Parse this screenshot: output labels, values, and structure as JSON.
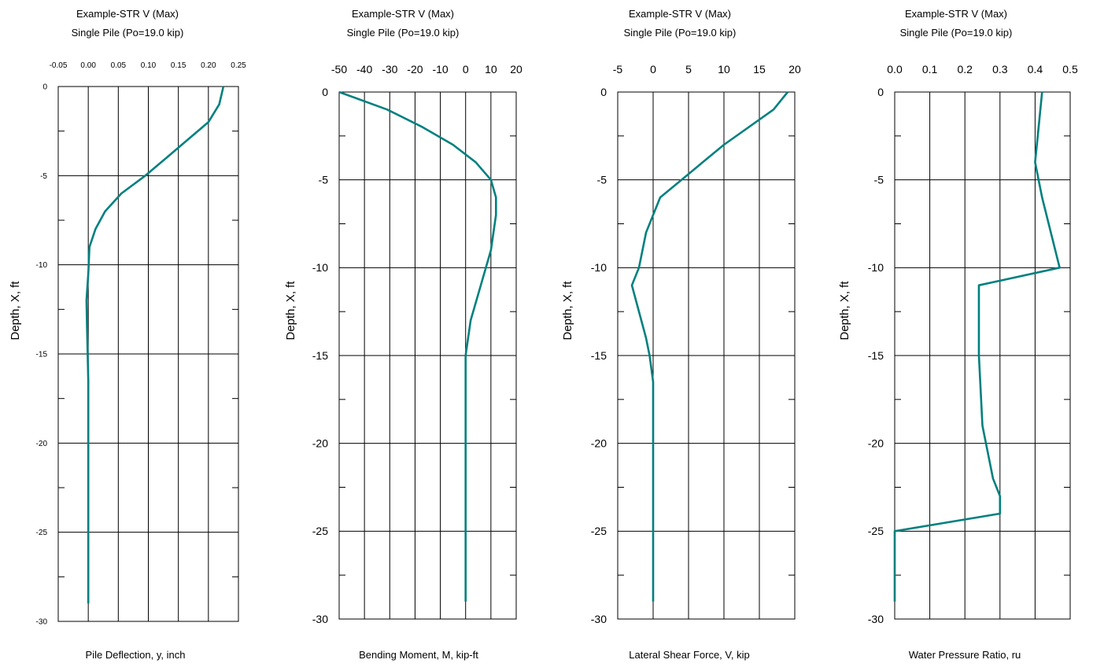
{
  "chart_data": [
    {
      "type": "line",
      "title": "Example-STR V (Max)",
      "subtitle": "Single Pile (Po=19.0 kip)",
      "xlabel": "Pile Deflection, y, inch",
      "ylabel": "Depth,  X, ft",
      "xlim": [
        -0.05,
        0.25
      ],
      "ylim": [
        -30,
        0
      ],
      "xticks": [
        "-0.05",
        "0.00",
        "0.05",
        "0.10",
        "0.15",
        "0.20",
        "0.25"
      ],
      "yticks": [
        "0",
        "-5",
        "-10",
        "-15",
        "-20",
        "-25",
        "-30"
      ],
      "grid": true,
      "color": "#00807f",
      "x": [
        0.225,
        0.218,
        0.2,
        0.165,
        0.13,
        0.095,
        0.055,
        0.028,
        0.012,
        0.002,
        0.0,
        -0.003,
        -0.002,
        0.0,
        0.0,
        0.0
      ],
      "y": [
        0,
        -1,
        -2,
        -3,
        -4,
        -5,
        -6,
        -7,
        -8,
        -9,
        -10.5,
        -12,
        -13.5,
        -16.5,
        -20,
        -29
      ]
    },
    {
      "type": "line",
      "title": "Example-STR V (Max)",
      "subtitle": "Single Pile (Po=19.0 kip)",
      "xlabel": "Bending Moment, M, kip-ft",
      "ylabel": "Depth,  X, ft",
      "xlim": [
        -50,
        20
      ],
      "ylim": [
        -30,
        0
      ],
      "xticks": [
        "-50",
        "-40",
        "-30",
        "-20",
        "-10",
        "0",
        "10",
        "20"
      ],
      "yticks": [
        "0",
        "-5",
        "-10",
        "-15",
        "-20",
        "-25",
        "-30"
      ],
      "grid": true,
      "color": "#00807f",
      "x": [
        -50,
        -31,
        -17,
        -5,
        4,
        10,
        12,
        12,
        10,
        6,
        2,
        0,
        0,
        0,
        0
      ],
      "y": [
        0,
        -1,
        -2,
        -3,
        -4,
        -5,
        -6,
        -7,
        -9,
        -11,
        -13,
        -15,
        -17,
        -19.5,
        -29
      ]
    },
    {
      "type": "line",
      "title": "Example-STR V (Max)",
      "subtitle": "Single Pile (Po=19.0 kip)",
      "xlabel": "Lateral Shear Force, V, kip",
      "ylabel": "Depth,  X, ft",
      "xlim": [
        -5,
        20
      ],
      "ylim": [
        -30,
        0
      ],
      "xticks": [
        "-5",
        "0",
        "5",
        "10",
        "15",
        "20"
      ],
      "yticks": [
        "0",
        "-5",
        "-10",
        "-15",
        "-20",
        "-25",
        "-30"
      ],
      "grid": true,
      "color": "#00807f",
      "x": [
        19,
        17,
        10,
        7,
        4,
        1,
        0,
        -1,
        -2,
        -3,
        -1,
        -0.5,
        0,
        0,
        0
      ],
      "y": [
        0,
        -1,
        -3,
        -4,
        -5,
        -6,
        -7,
        -8,
        -10,
        -11,
        -14,
        -15,
        -16.5,
        -22,
        -29
      ]
    },
    {
      "type": "line",
      "title": "Example-STR V (Max)",
      "subtitle": "Single Pile (Po=19.0 kip)",
      "xlabel": "Water Pressure Ratio, ru",
      "ylabel": "Depth,  X, ft",
      "xlim": [
        0.0,
        0.5
      ],
      "ylim": [
        -30,
        0
      ],
      "xticks": [
        "0.0",
        "0.1",
        "0.2",
        "0.3",
        "0.4",
        "0.5"
      ],
      "yticks": [
        "0",
        "-5",
        "-10",
        "-15",
        "-20",
        "-25",
        "-30"
      ],
      "grid": true,
      "color": "#00807f",
      "x": [
        0.42,
        0.41,
        0.4,
        0.42,
        0.47,
        0.24,
        0.24,
        0.25,
        0.28,
        0.3,
        0.3,
        0.3,
        0.0,
        0.0,
        0.0
      ],
      "y": [
        0,
        -2,
        -4,
        -6,
        -10,
        -11,
        -15,
        -19,
        -22,
        -23,
        -24,
        -24,
        -25,
        -28,
        -29
      ]
    }
  ]
}
